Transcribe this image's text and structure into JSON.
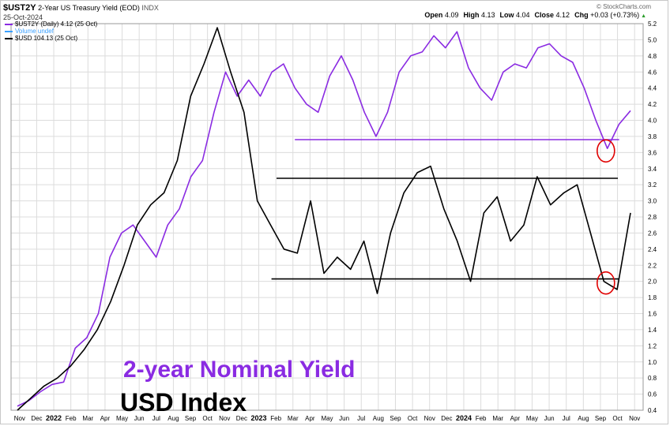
{
  "header": {
    "symbol": "$UST2Y",
    "description": "2-Year US Treasury Yield (EOD)",
    "exchange": "INDX",
    "date": "25-Oct-2024",
    "brand": "© StockCharts.com",
    "ohlc": [
      {
        "label": "Open",
        "value": "4.09"
      },
      {
        "label": "High",
        "value": "4.13"
      },
      {
        "label": "Low",
        "value": "4.04"
      },
      {
        "label": "Close",
        "value": "4.12"
      },
      {
        "label": "Chg",
        "value": "+0.03 (+0.73%)"
      }
    ],
    "chg_icon": "up-triangle-icon"
  },
  "legend": [
    {
      "text": "$UST2Y (Daily) 4.12 (25 Oct)",
      "color": "#8a2be2"
    },
    {
      "text": "Volume undef",
      "color": "#3aa0ff"
    },
    {
      "text": "$USD 104.13 (25 Oct)",
      "color": "#000000"
    }
  ],
  "annotations": {
    "purple_label": "2-year Nominal Yield",
    "black_label": "USD Index"
  },
  "colors": {
    "yield": "#8a2be2",
    "usd": "#000000",
    "label_purple": "#8a2be2",
    "circle": "#e00000",
    "grid": "#dcdcdc"
  },
  "chart_data": {
    "type": "line",
    "x_axis_labels": [
      "Nov",
      "Dec",
      "2022",
      "Feb",
      "Mar",
      "Apr",
      "May",
      "Jun",
      "Jul",
      "Aug",
      "Sep",
      "Oct",
      "Nov",
      "Dec",
      "2023",
      "Feb",
      "Mar",
      "Apr",
      "May",
      "Jun",
      "Jul",
      "Aug",
      "Sep",
      "Oct",
      "Nov",
      "Dec",
      "2024",
      "Feb",
      "Mar",
      "Apr",
      "May",
      "Jun",
      "Jul",
      "Aug",
      "Sep",
      "Oct",
      "Nov"
    ],
    "y_ticks": [
      0.4,
      0.6,
      0.8,
      1.0,
      1.2,
      1.4,
      1.6,
      1.8,
      2.0,
      2.2,
      2.4,
      2.6,
      2.8,
      3.0,
      3.2,
      3.4,
      3.6,
      3.8,
      4.0,
      4.2,
      4.4,
      4.6,
      4.8,
      5.0,
      5.2
    ],
    "ylim": [
      0.4,
      5.2
    ],
    "grid": true,
    "series": [
      {
        "name": "$UST2Y",
        "values": [
          0.45,
          0.52,
          0.63,
          0.72,
          0.75,
          1.17,
          1.3,
          1.6,
          2.3,
          2.6,
          2.7,
          2.5,
          2.3,
          2.7,
          2.9,
          3.3,
          3.5,
          4.1,
          4.6,
          4.3,
          4.5,
          4.3,
          4.6,
          4.7,
          4.4,
          4.2,
          4.1,
          4.55,
          4.8,
          4.5,
          4.1,
          3.8,
          4.1,
          4.6,
          4.8,
          4.85,
          5.05,
          4.9,
          5.1,
          4.65,
          4.4,
          4.25,
          4.6,
          4.7,
          4.65,
          4.9,
          4.95,
          4.8,
          4.72,
          4.4,
          4.0,
          3.65,
          3.95,
          4.12
        ]
      },
      {
        "name": "$USD",
        "values": [
          0.4,
          0.55,
          0.7,
          0.8,
          0.95,
          1.15,
          1.4,
          1.75,
          2.2,
          2.7,
          2.95,
          3.1,
          3.5,
          4.3,
          4.7,
          5.15,
          4.6,
          4.1,
          3.0,
          2.7,
          2.4,
          2.35,
          3.0,
          2.1,
          2.3,
          2.15,
          2.5,
          1.85,
          2.6,
          3.1,
          3.35,
          3.43,
          2.9,
          2.5,
          2.0,
          2.85,
          3.05,
          2.5,
          2.7,
          3.3,
          2.95,
          3.1,
          3.2,
          2.6,
          2.0,
          1.9,
          2.85
        ]
      }
    ],
    "reference_lines": [
      {
        "series": "$UST2Y",
        "y": 3.76
      },
      {
        "series": "$USD",
        "y": 3.28
      },
      {
        "series": "$USD",
        "y": 2.03
      }
    ],
    "highlights": [
      {
        "series": "$UST2Y",
        "x": "Sep 2024",
        "y": 3.62
      },
      {
        "series": "$USD",
        "x": "Sep 2024",
        "y": 1.98
      }
    ]
  }
}
